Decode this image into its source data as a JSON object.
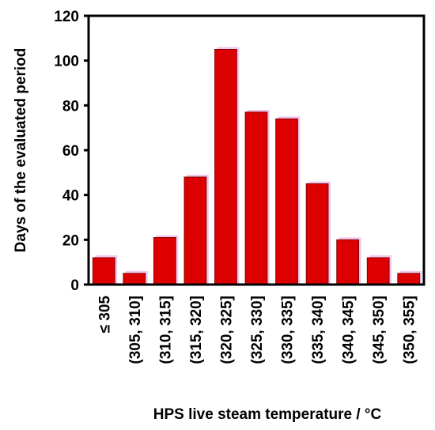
{
  "chart_data": {
    "type": "bar",
    "title": "",
    "xlabel": "HPS live steam temperature / °C",
    "ylabel": "Days of the evaluated period",
    "categories": [
      "≤ 305",
      "(305, 310]",
      "(310, 315]",
      "(315, 320]",
      "(320, 325]",
      "(325, 330]",
      "(330, 335]",
      "(335, 340]",
      "(340, 345]",
      "(345, 350]",
      "(350, 355]"
    ],
    "values": [
      12,
      5,
      21,
      48,
      105,
      77,
      74,
      45,
      20,
      12,
      5
    ],
    "ylim": [
      0,
      120
    ],
    "yticks": [
      "0",
      "20",
      "40",
      "60",
      "80",
      "100",
      "120"
    ],
    "grid": false,
    "bar_color": "#dd0000",
    "bar_edge_color": "#8b0000",
    "bar_shadow_color": "#f0c8f0"
  }
}
